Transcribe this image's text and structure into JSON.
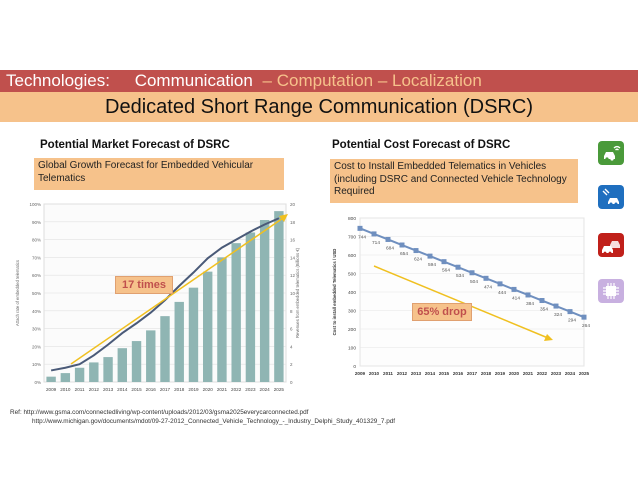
{
  "header": {
    "prefix": "Technologies:",
    "active": "Communication",
    "rest": "– Computation – Localization",
    "subtitle": "Dedicated Short Range Communication (DSRC)"
  },
  "colors": {
    "header_bg": "#c0504d",
    "band_bg": "#f6c28b",
    "inactive_text": "#f6c28b",
    "bar": "#8fb5b3",
    "line": "#4a5a78",
    "cost_line": "#6f8fbf",
    "arrow": "#f0c020"
  },
  "left_panel": {
    "title": "Potential Market Forecast of DSRC",
    "note": "Global Growth Forecast for Embedded Vehicular Telematics",
    "callout": "17 times"
  },
  "right_panel": {
    "title": "Potential Cost Forecast of DSRC",
    "note": "Cost to Install Embedded Telematics in Vehicles (including DSRC and Connected Vehicle Technology Required",
    "callout": "65% drop"
  },
  "chart_data": [
    {
      "type": "bar",
      "title": "Potential Market Forecast of DSRC",
      "categories": [
        "2009",
        "2010",
        "2011",
        "2012",
        "2013",
        "2014",
        "2015",
        "2016",
        "2017",
        "2018",
        "2019",
        "2020",
        "2021",
        "2022",
        "2023",
        "2024",
        "2025"
      ],
      "series": [
        {
          "name": "Attach rate of embedded telematics",
          "values": [
            3,
            5,
            8,
            11,
            14,
            19,
            23,
            29,
            37,
            45,
            53,
            62,
            70,
            78,
            84,
            91,
            96
          ]
        },
        {
          "name": "Revenues from embedded telematics (Billions €)",
          "values": [
            1.3,
            1.6,
            2,
            3,
            4.2,
            5.5,
            6.6,
            7.8,
            9.2,
            10.8,
            12.3,
            13.9,
            15.1,
            16,
            16.9,
            17.7,
            18.4
          ]
        }
      ],
      "ylabel": "Attach rate of embedded telematics",
      "y2label": "Revenues from embedded telematics (Billions €)",
      "ylim": [
        0,
        100
      ],
      "y2lim": [
        0,
        20
      ],
      "yticks": [
        "0%",
        "10%",
        "20%",
        "30%",
        "40%",
        "50%",
        "60%",
        "70%",
        "80%",
        "90%",
        "100%"
      ],
      "y2ticks": [
        "0",
        "2",
        "4",
        "6",
        "8",
        "10",
        "12",
        "14",
        "16",
        "18",
        "20"
      ]
    },
    {
      "type": "line",
      "title": "Potential Cost Forecast of DSRC",
      "x": [
        "2009",
        "2010",
        "2011",
        "2012",
        "2013",
        "2014",
        "2015",
        "2016",
        "2017",
        "2018",
        "2019",
        "2020",
        "2021",
        "2022",
        "2023",
        "2024",
        "2025"
      ],
      "values": [
        744,
        714,
        684,
        654,
        624,
        594,
        564,
        534,
        504,
        474,
        444,
        414,
        384,
        354,
        324,
        294,
        264
      ],
      "labels": [
        "744",
        "714",
        "684",
        "654",
        "624",
        "594",
        "564",
        "534",
        "504",
        "474",
        "444",
        "414",
        "384",
        "354",
        "324",
        "294",
        "264"
      ],
      "ylabel": "Cost to install embedded Telematics / USD",
      "ylim": [
        0,
        800
      ],
      "yticks": [
        "0",
        "100",
        "200",
        "300",
        "400",
        "500",
        "600",
        "700",
        "800"
      ]
    }
  ],
  "icons": [
    {
      "name": "vehicle-to-vehicle-icon",
      "color": "#4a9a3a"
    },
    {
      "name": "satellite-car-icon",
      "color": "#1f6fbf"
    },
    {
      "name": "traffic-cars-icon",
      "color": "#c0201a"
    },
    {
      "name": "computation-chip-icon",
      "color": "#c8b0e0"
    }
  ],
  "refs": {
    "line1": "Ref: http://www.gsma.com/connectedliving/wp-content/uploads/2012/03/gsma2025everycarconnected.pdf",
    "line2": "http://www.michigan.gov/documents/mdot/09-27-2012_Connected_Vehicle_Technology_-_Industry_Delphi_Study_401329_7.pdf"
  }
}
